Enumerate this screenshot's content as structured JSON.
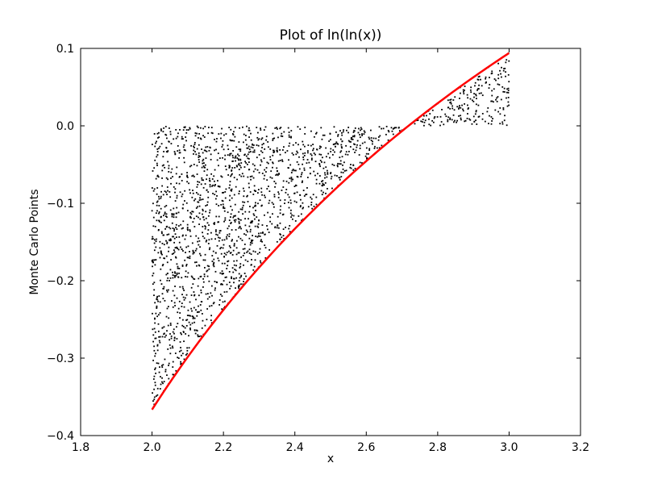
{
  "chart_data": {
    "type": "scatter",
    "title": "Plot of ln(ln(x))",
    "xlabel": "x",
    "ylabel": "Monte Carlo Points",
    "xlim": [
      1.8,
      3.2
    ],
    "ylim": [
      -0.4,
      0.1
    ],
    "xticks": [
      1.8,
      2.0,
      2.2,
      2.4,
      2.6,
      2.8,
      3.0,
      3.2
    ],
    "xtick_labels": [
      "1.8",
      "2.0",
      "2.2",
      "2.4",
      "2.6",
      "2.8",
      "3.0",
      "3.2"
    ],
    "yticks": [
      0.1,
      0.0,
      -0.1,
      -0.2,
      -0.3,
      -0.4
    ],
    "ytick_labels": [
      "0.1",
      "0.0",
      "−0.1",
      "−0.2",
      "−0.3",
      "−0.4"
    ],
    "grid": false,
    "series": [
      {
        "type": "scatter",
        "color": "#000000",
        "region": {
          "x_range": [
            2.0,
            3.0
          ],
          "y_bound_low": "ln(ln(x))",
          "y_bound_high": 0.0
        },
        "point_count": 2000
      },
      {
        "type": "line",
        "function": "ln(ln(x))",
        "x_range": [
          2.0,
          3.0
        ],
        "color": "#ff0000"
      }
    ]
  }
}
